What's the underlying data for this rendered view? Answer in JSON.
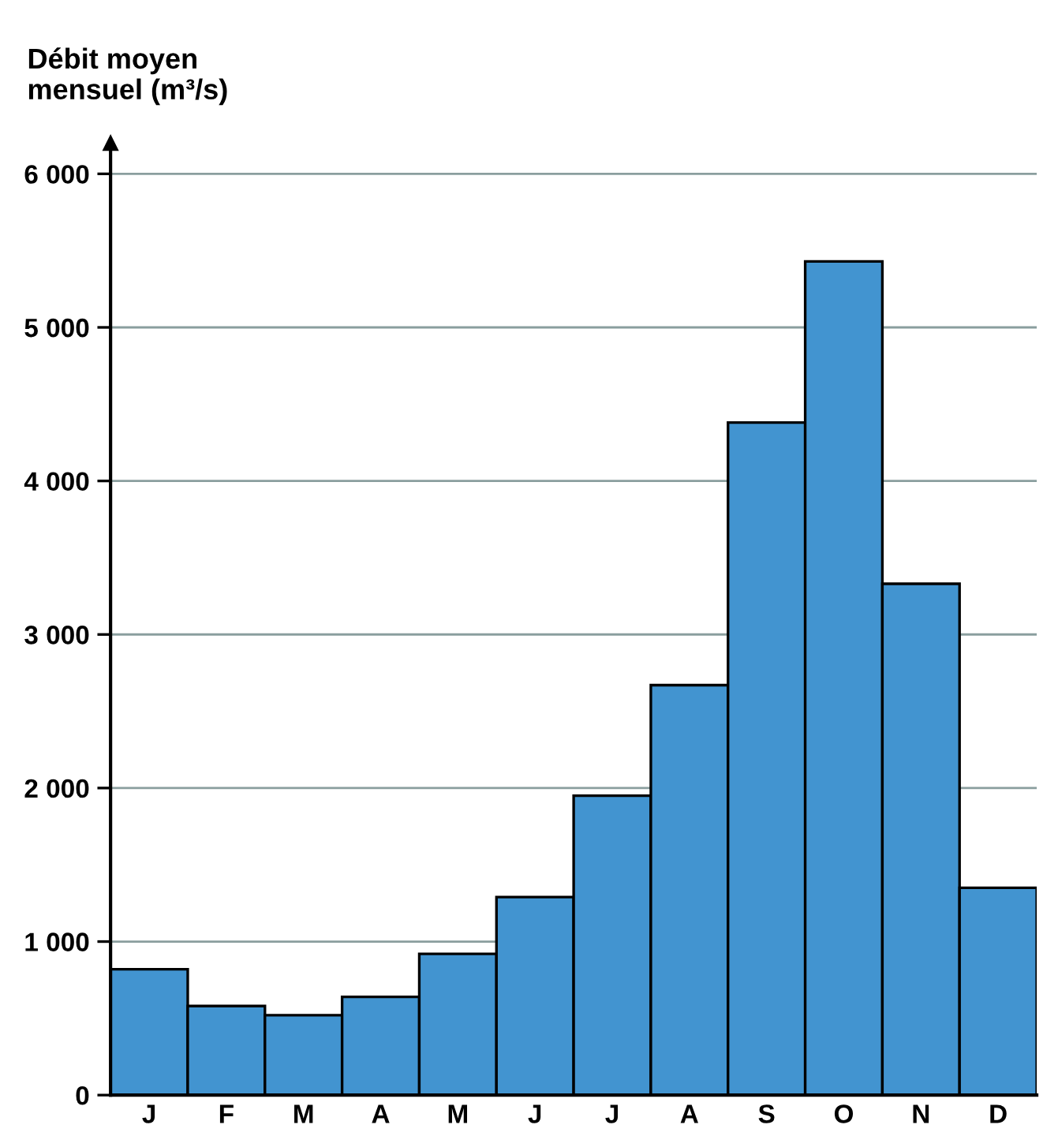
{
  "chart_data": {
    "type": "bar",
    "ylabel": "Débit moyen\nmensuel (m³/s)",
    "categories": [
      "J",
      "F",
      "M",
      "A",
      "M",
      "J",
      "J",
      "A",
      "S",
      "O",
      "N",
      "D"
    ],
    "values": [
      820,
      580,
      520,
      640,
      920,
      1290,
      1950,
      2670,
      4380,
      5430,
      3330,
      1350
    ],
    "color": "#4294d0",
    "ylim": [
      0,
      6200
    ],
    "yticks": [
      0,
      {
        "value": 1000,
        "label": "1 000"
      },
      {
        "value": 2000,
        "label": "2 000"
      },
      {
        "value": 3000,
        "label": "3 000"
      },
      {
        "value": 4000,
        "label": "4 000"
      },
      {
        "value": 5000,
        "label": "5 000"
      },
      {
        "value": 6000,
        "label": "6 000"
      }
    ],
    "grid": "y",
    "legend": false
  }
}
